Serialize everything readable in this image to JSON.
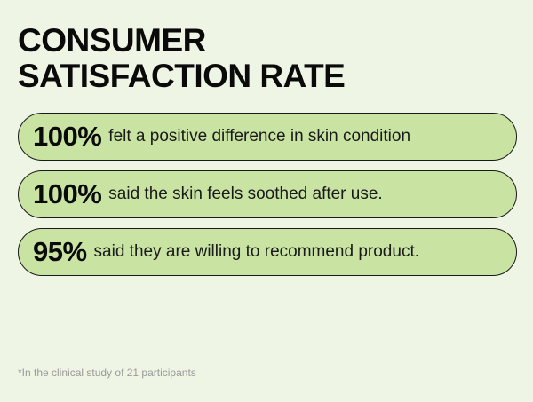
{
  "title": {
    "line1": "CONSUMER",
    "line2": "SATISFACTION RATE"
  },
  "stats": [
    {
      "percent": "100%",
      "text": "felt a positive difference in skin condition",
      "value": 100
    },
    {
      "percent": "100%",
      "text": "said the skin feels soothed after use.",
      "value": 100
    },
    {
      "percent": "95%",
      "text": "said they are willing to recommend product.",
      "value": 95
    }
  ],
  "footnote": "*In the clinical study of 21 participants",
  "colors": {
    "background": "#eef5e4",
    "pill_fill": "#c9e3a3",
    "pill_border": "#1a1a1a",
    "text": "#111111",
    "footnote": "#9a9a9a"
  }
}
